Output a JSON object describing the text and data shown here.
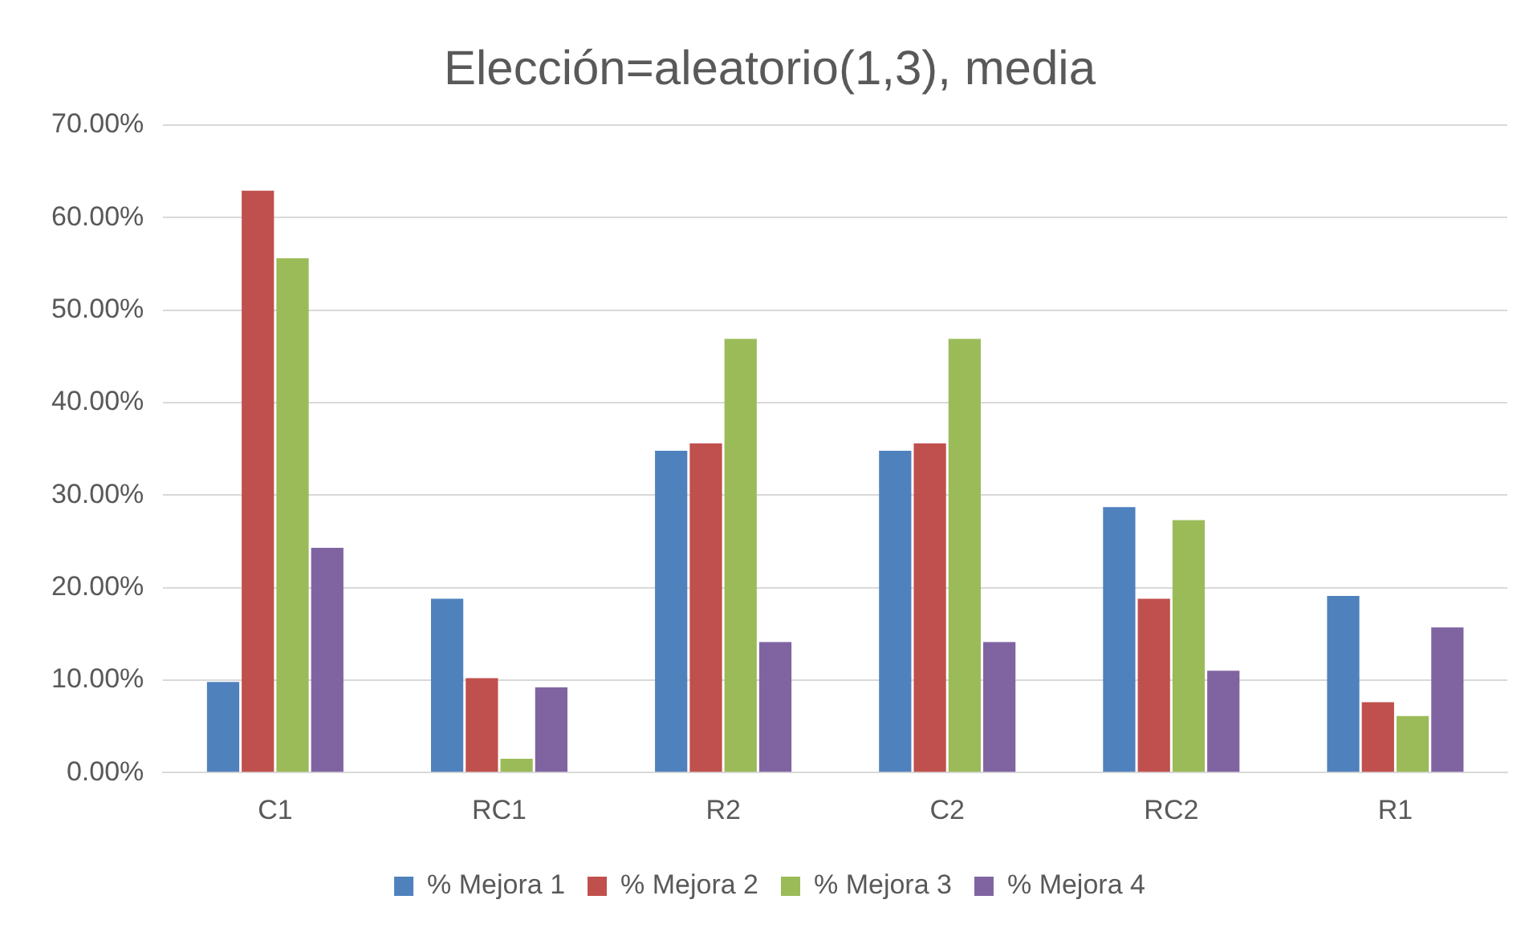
{
  "chart_data": {
    "type": "bar",
    "title": "Elección=aleatorio(1,3), media",
    "categories": [
      "C1",
      "RC1",
      "R2",
      "C2",
      "RC2",
      "R1"
    ],
    "series": [
      {
        "name": "% Mejora 1",
        "color": "#4f81bd",
        "values": [
          9.8,
          18.8,
          34.8,
          34.8,
          28.7,
          19.1
        ]
      },
      {
        "name": "% Mejora 2",
        "color": "#c0504d",
        "values": [
          62.9,
          10.2,
          35.6,
          35.6,
          18.8,
          7.6
        ]
      },
      {
        "name": "% Mejora 3",
        "color": "#9bbb59",
        "values": [
          55.6,
          1.5,
          46.9,
          46.9,
          27.3,
          6.1
        ]
      },
      {
        "name": "% Mejora 4",
        "color": "#8064a2",
        "values": [
          24.3,
          9.2,
          14.1,
          14.1,
          11.0,
          15.7
        ]
      }
    ],
    "ylim": [
      0,
      70
    ],
    "yticks": [
      {
        "value": 0,
        "label": "0.00%"
      },
      {
        "value": 10,
        "label": "10.00%"
      },
      {
        "value": 20,
        "label": "20.00%"
      },
      {
        "value": 30,
        "label": "30.00%"
      },
      {
        "value": 40,
        "label": "40.00%"
      },
      {
        "value": 50,
        "label": "50.00%"
      },
      {
        "value": 60,
        "label": "60.00%"
      },
      {
        "value": 70,
        "label": "70.00%"
      }
    ],
    "grid": "y",
    "legend": "bottom"
  }
}
